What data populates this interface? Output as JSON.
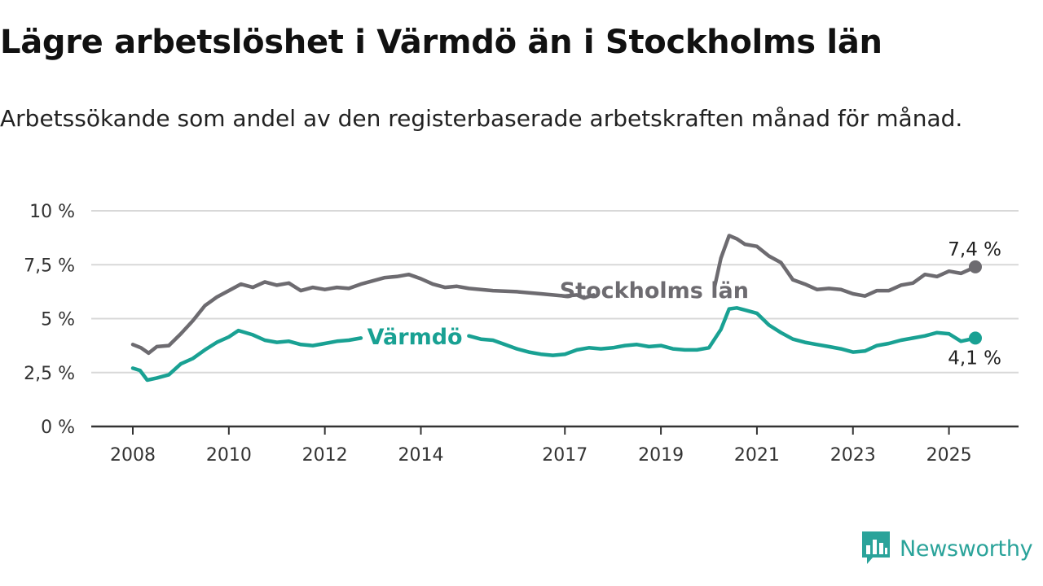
{
  "title": "Lägre arbetslöshet i Värmdö än i Stockholms län",
  "subtitle": "Arbetssökande som andel av den registerbaserade arbetskraften månad för månad.",
  "brand": "Newsworthy",
  "colors": {
    "stockholm": "#6d6b70",
    "varmdo": "#19a193",
    "grid": "#d8d8d8",
    "axis": "#333333",
    "brand": "#2aa39a"
  },
  "chart_data": {
    "type": "line",
    "xlabel": "",
    "ylabel": "",
    "ylim": [
      0,
      10
    ],
    "xlim": [
      2007.85,
      2026.4
    ],
    "grid": true,
    "yticks": [
      0,
      2.5,
      5,
      7.5,
      10
    ],
    "ytick_labels": [
      "0 %",
      "2,5 %",
      "5 %",
      "7,5 %",
      "10 %"
    ],
    "xticks": [
      2008,
      2010,
      2012,
      2014,
      2017,
      2019,
      2021,
      2023,
      2025
    ],
    "xtick_labels": [
      "2008",
      "2010",
      "2012",
      "2014",
      "2017",
      "2019",
      "2021",
      "2023",
      "2025"
    ],
    "series": [
      {
        "name": "Stockholms län",
        "color_key": "stockholm",
        "end_label": "7,4 %",
        "points": [
          [
            2008.0,
            3.8
          ],
          [
            2008.17,
            3.65
          ],
          [
            2008.33,
            3.4
          ],
          [
            2008.5,
            3.7
          ],
          [
            2008.75,
            3.75
          ],
          [
            2009.0,
            4.3
          ],
          [
            2009.25,
            4.9
          ],
          [
            2009.5,
            5.6
          ],
          [
            2009.75,
            6.0
          ],
          [
            2010.0,
            6.3
          ],
          [
            2010.25,
            6.6
          ],
          [
            2010.5,
            6.45
          ],
          [
            2010.75,
            6.7
          ],
          [
            2011.0,
            6.55
          ],
          [
            2011.25,
            6.65
          ],
          [
            2011.5,
            6.3
          ],
          [
            2011.75,
            6.45
          ],
          [
            2012.0,
            6.35
          ],
          [
            2012.25,
            6.45
          ],
          [
            2012.5,
            6.4
          ],
          [
            2012.75,
            6.6
          ],
          [
            2013.0,
            6.75
          ],
          [
            2013.25,
            6.9
          ],
          [
            2013.5,
            6.95
          ],
          [
            2013.75,
            7.05
          ],
          [
            2014.0,
            6.85
          ],
          [
            2014.25,
            6.6
          ],
          [
            2014.5,
            6.45
          ],
          [
            2014.75,
            6.5
          ],
          [
            2015.0,
            6.4
          ],
          [
            2015.5,
            6.3
          ],
          [
            2016.0,
            6.25
          ],
          [
            2016.5,
            6.15
          ],
          [
            2017.0,
            6.05
          ],
          [
            2017.25,
            6.1
          ],
          [
            2017.4,
            5.95
          ],
          [
            2017.6,
            6.1
          ],
          [
            2020.12,
            6.5
          ],
          [
            2020.25,
            7.8
          ],
          [
            2020.42,
            8.85
          ],
          [
            2020.58,
            8.7
          ],
          [
            2020.75,
            8.45
          ],
          [
            2021.0,
            8.35
          ],
          [
            2021.25,
            7.9
          ],
          [
            2021.5,
            7.6
          ],
          [
            2021.75,
            6.8
          ],
          [
            2022.0,
            6.6
          ],
          [
            2022.25,
            6.35
          ],
          [
            2022.5,
            6.4
          ],
          [
            2022.75,
            6.35
          ],
          [
            2023.0,
            6.15
          ],
          [
            2023.25,
            6.05
          ],
          [
            2023.5,
            6.3
          ],
          [
            2023.75,
            6.3
          ],
          [
            2024.0,
            6.55
          ],
          [
            2024.25,
            6.65
          ],
          [
            2024.5,
            7.05
          ],
          [
            2024.75,
            6.95
          ],
          [
            2025.0,
            7.2
          ],
          [
            2025.25,
            7.1
          ],
          [
            2025.55,
            7.4
          ]
        ]
      },
      {
        "name": "Värmdö",
        "color_key": "varmdo",
        "end_label": "4,1 %",
        "points": [
          [
            2008.0,
            2.7
          ],
          [
            2008.15,
            2.6
          ],
          [
            2008.3,
            2.15
          ],
          [
            2008.5,
            2.25
          ],
          [
            2008.75,
            2.4
          ],
          [
            2009.0,
            2.9
          ],
          [
            2009.25,
            3.15
          ],
          [
            2009.5,
            3.55
          ],
          [
            2009.75,
            3.9
          ],
          [
            2010.0,
            4.15
          ],
          [
            2010.2,
            4.45
          ],
          [
            2010.5,
            4.25
          ],
          [
            2010.75,
            4.0
          ],
          [
            2011.0,
            3.9
          ],
          [
            2011.25,
            3.95
          ],
          [
            2011.5,
            3.8
          ],
          [
            2011.75,
            3.75
          ],
          [
            2012.0,
            3.85
          ],
          [
            2012.25,
            3.95
          ],
          [
            2012.5,
            4.0
          ],
          [
            2012.75,
            4.1
          ],
          [
            2015.0,
            4.2
          ],
          [
            2015.25,
            4.05
          ],
          [
            2015.5,
            4.0
          ],
          [
            2015.75,
            3.8
          ],
          [
            2016.0,
            3.6
          ],
          [
            2016.25,
            3.45
          ],
          [
            2016.5,
            3.35
          ],
          [
            2016.75,
            3.3
          ],
          [
            2017.0,
            3.35
          ],
          [
            2017.25,
            3.55
          ],
          [
            2017.5,
            3.65
          ],
          [
            2017.75,
            3.6
          ],
          [
            2018.0,
            3.65
          ],
          [
            2018.25,
            3.75
          ],
          [
            2018.5,
            3.8
          ],
          [
            2018.75,
            3.7
          ],
          [
            2019.0,
            3.75
          ],
          [
            2019.25,
            3.6
          ],
          [
            2019.5,
            3.55
          ],
          [
            2019.75,
            3.55
          ],
          [
            2020.0,
            3.65
          ],
          [
            2020.25,
            4.5
          ],
          [
            2020.42,
            5.45
          ],
          [
            2020.58,
            5.5
          ],
          [
            2020.75,
            5.4
          ],
          [
            2021.0,
            5.25
          ],
          [
            2021.25,
            4.7
          ],
          [
            2021.5,
            4.35
          ],
          [
            2021.75,
            4.05
          ],
          [
            2022.0,
            3.9
          ],
          [
            2022.25,
            3.8
          ],
          [
            2022.5,
            3.7
          ],
          [
            2022.75,
            3.6
          ],
          [
            2023.0,
            3.45
          ],
          [
            2023.25,
            3.5
          ],
          [
            2023.5,
            3.75
          ],
          [
            2023.75,
            3.85
          ],
          [
            2024.0,
            4.0
          ],
          [
            2024.25,
            4.1
          ],
          [
            2024.5,
            4.2
          ],
          [
            2024.75,
            4.35
          ],
          [
            2025.0,
            4.3
          ],
          [
            2025.25,
            3.95
          ],
          [
            2025.55,
            4.1
          ]
        ]
      }
    ]
  }
}
